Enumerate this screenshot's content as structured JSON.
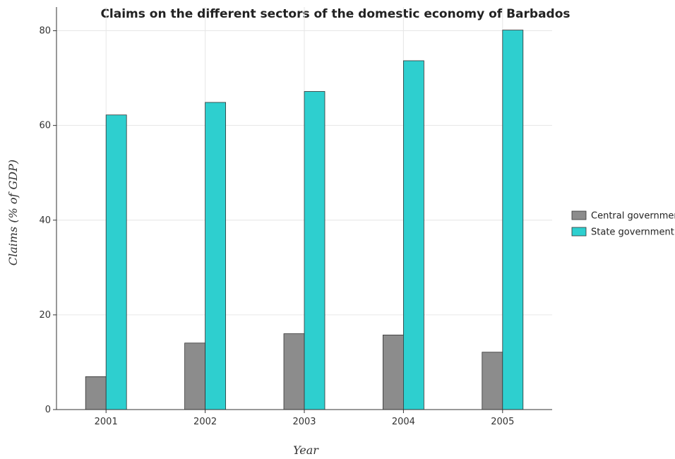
{
  "chart_data": {
    "type": "bar",
    "title": "Claims on the different sectors of the domestic economy of Barbados",
    "xlabel": "Year",
    "ylabel": "Claims (% of GDP)",
    "categories": [
      "2001",
      "2002",
      "2003",
      "2004",
      "2005"
    ],
    "ylim": [
      0,
      85
    ],
    "yticks": [
      0,
      20,
      40,
      60,
      80
    ],
    "grid": true,
    "legend_position": "right",
    "series": [
      {
        "name": "Central government",
        "color": "#8c8c8c",
        "values": [
          6.95,
          14.05,
          16.02,
          15.75,
          12.12
        ]
      },
      {
        "name": "State government",
        "color": "#2ecfcf",
        "values": [
          62.22,
          64.87,
          67.18,
          73.67,
          80.14
        ]
      }
    ]
  }
}
